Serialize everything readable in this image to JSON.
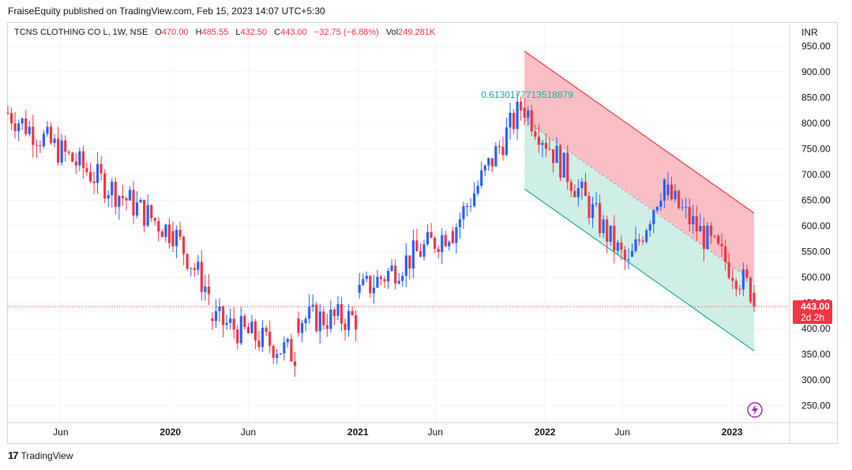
{
  "header": {
    "text": "FraiseEquity published on TradingView.com, Feb 15, 2023 14:07 UTC+5:30"
  },
  "legend": {
    "symbol": "TCNS CLOTHING CO L, 1W, NSE",
    "open_label": "O",
    "open": "470.00",
    "high_label": "H",
    "high": "485.55",
    "low_label": "L",
    "low": "432.50",
    "close_label": "C",
    "close": "443.00",
    "change": "−32.75 (−6.88%)",
    "vol_label": "Vol",
    "vol": "249.281K"
  },
  "footer": {
    "logo": "17",
    "brand": "TradingView"
  },
  "colors": {
    "up": "#2962ff",
    "down": "#f23645",
    "channel_top": "#f23645",
    "channel_bottom": "#22ab94",
    "fill_top": "#f7a9b2",
    "fill_bottom": "#bfe9de"
  },
  "chart_data": {
    "type": "candlestick",
    "currency": "INR",
    "ylim": [
      225,
      975
    ],
    "y_ticks": [
      "950.00",
      "900.00",
      "850.00",
      "800.00",
      "750.00",
      "700.00",
      "650.00",
      "600.00",
      "550.00",
      "500.00",
      "450.00",
      "400.00",
      "350.00",
      "300.00",
      "250.00"
    ],
    "x_ticks": [
      {
        "label": "Jun",
        "year": false,
        "date": "2019-06"
      },
      {
        "label": "2020",
        "year": true,
        "date": "2020-01"
      },
      {
        "label": "Jun",
        "year": false,
        "date": "2020-06"
      },
      {
        "label": "2021",
        "year": true,
        "date": "2021-01"
      },
      {
        "label": "Jun",
        "year": false,
        "date": "2021-06"
      },
      {
        "label": "2022",
        "year": true,
        "date": "2022-01"
      },
      {
        "label": "Jun",
        "year": false,
        "date": "2022-06"
      },
      {
        "label": "2023",
        "year": true,
        "date": "2023-01"
      }
    ],
    "last_price": {
      "value": "443.00",
      "countdown": "2d 2h"
    },
    "channel": {
      "top": [
        [
          "2021-11-22",
          940
        ],
        [
          "2023-02-13",
          625
        ]
      ],
      "bottom": [
        [
          "2021-11-22",
          672
        ],
        [
          "2023-02-13",
          357
        ]
      ],
      "label": "0.61301777135188​79"
    },
    "segments": [
      {
        "from": "2019-02-18",
        "to": "2019-12-30",
        "start": 820,
        "end": 590
      },
      {
        "from": "2020-01-06",
        "to": "2020-03-16",
        "start": 590,
        "end": 470
      },
      {
        "from": "2020-03-23",
        "to": "2020-08-31",
        "start": 420,
        "end": 350
      },
      {
        "from": "2020-09-07",
        "to": "2020-12-28",
        "start": 420,
        "end": 420
      },
      {
        "from": "2021-01-04",
        "to": "2021-06-28",
        "start": 470,
        "end": 590
      },
      {
        "from": "2021-07-05",
        "to": "2021-11-15",
        "start": 590,
        "end": 830
      },
      {
        "from": "2021-11-22",
        "to": "2022-06-13",
        "start": 830,
        "end": 520
      },
      {
        "from": "2022-06-20",
        "to": "2022-08-22",
        "start": 540,
        "end": 690
      },
      {
        "from": "2022-08-29",
        "to": "2023-02-06",
        "start": 660,
        "end": 475
      }
    ],
    "last_candle": {
      "date": "2023-02-13",
      "open": 470.0,
      "high": 485.55,
      "low": 432.5,
      "close": 443.0
    }
  }
}
